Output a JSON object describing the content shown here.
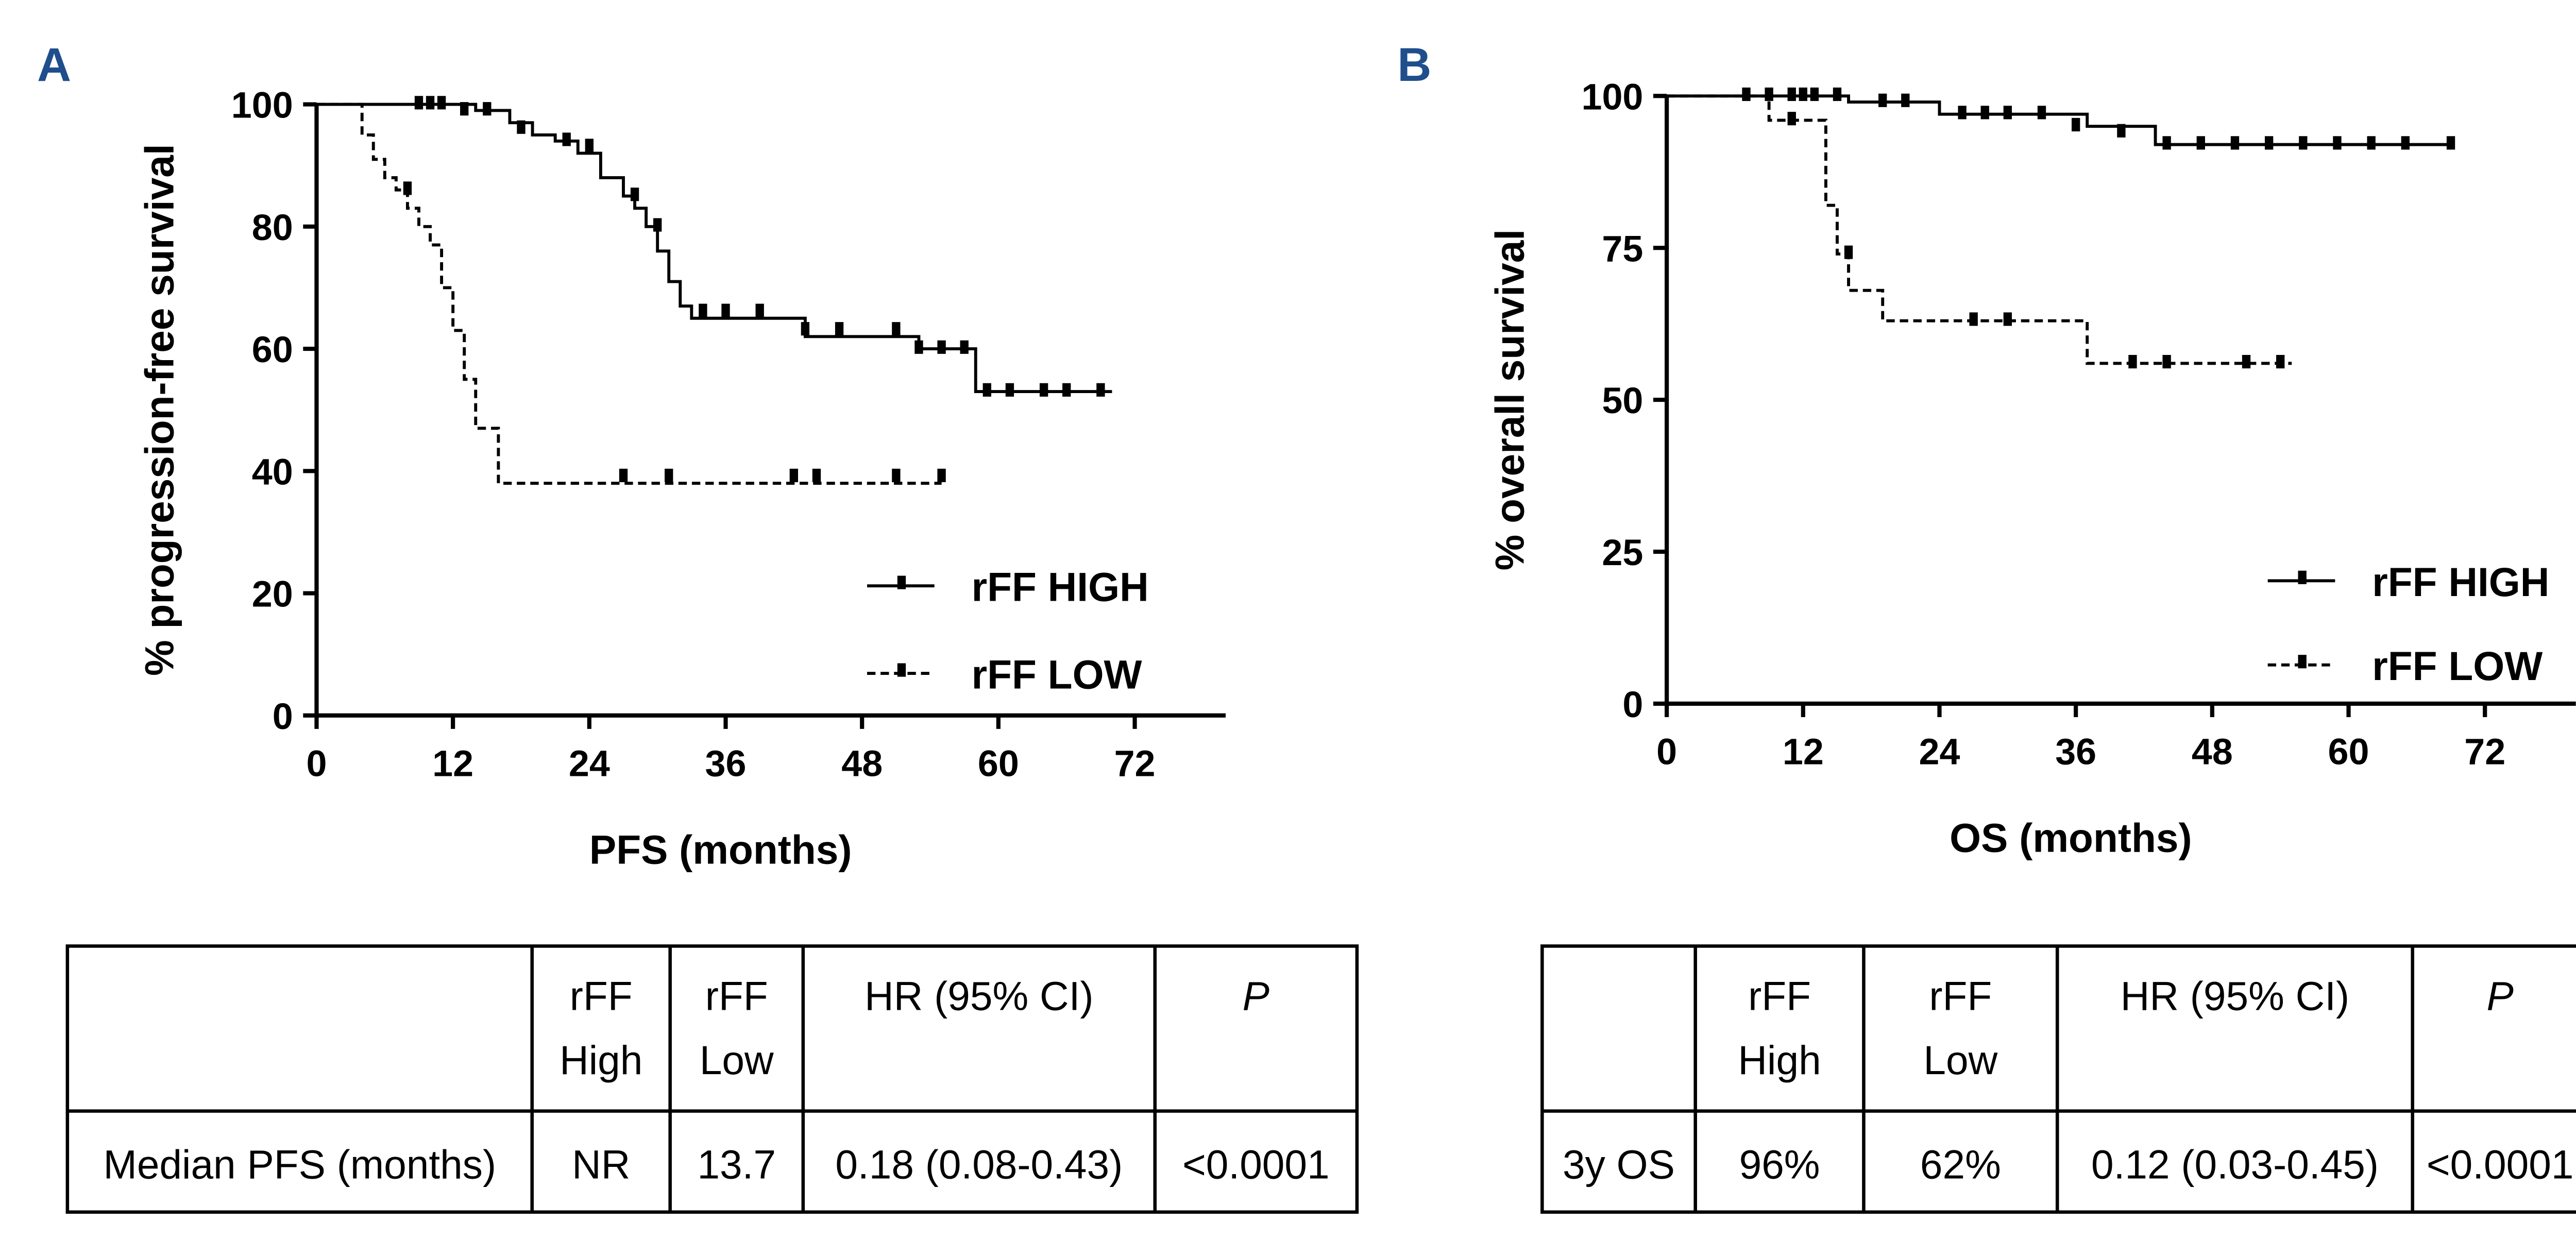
{
  "chart_data": [
    {
      "type": "step",
      "panel_label": "A",
      "x_label": "PFS (months)",
      "y_label": "% progression-free survival",
      "xlim": [
        0,
        80
      ],
      "ylim": [
        0,
        100
      ],
      "xticks": [
        0,
        12,
        24,
        36,
        48,
        60,
        72
      ],
      "yticks": [
        0,
        20,
        40,
        60,
        80,
        100
      ],
      "legend": "lower right",
      "series": [
        {
          "name": "rFF HIGH",
          "color": "#000000",
          "line_style": "solid",
          "x": [
            0,
            14,
            17,
            19,
            21,
            23,
            25,
            27,
            28,
            29,
            30,
            31,
            32,
            33,
            43,
            53,
            58,
            70
          ],
          "values": [
            100,
            99,
            97,
            95,
            94,
            92,
            88,
            85,
            83,
            80,
            76,
            71,
            67,
            65,
            62,
            60,
            53,
            53
          ],
          "censor_x": [
            9,
            10,
            11,
            13,
            15,
            18,
            22,
            24,
            28,
            30,
            34,
            36,
            39,
            43,
            46,
            51,
            53,
            55,
            57,
            59,
            61,
            64,
            66,
            69
          ],
          "censor_values": [
            100,
            100,
            100,
            99,
            99,
            96,
            94,
            93,
            85,
            80,
            66,
            66,
            66,
            63,
            63,
            63,
            60,
            60,
            60,
            53,
            53,
            53,
            53,
            53
          ]
        },
        {
          "name": "rFF LOW",
          "color": "#000000",
          "line_style": "dashed",
          "x": [
            0,
            4,
            5,
            6,
            7,
            8,
            9,
            10,
            11,
            12,
            13,
            14,
            16,
            55
          ],
          "values": [
            100,
            95,
            91,
            88,
            86,
            83,
            80,
            77,
            70,
            63,
            55,
            47,
            38,
            38
          ],
          "censor_x": [
            8,
            27,
            31,
            42,
            44,
            51,
            55
          ],
          "censor_values": [
            86,
            39,
            39,
            39,
            39,
            39,
            39
          ]
        }
      ]
    },
    {
      "type": "step",
      "panel_label": "B",
      "x_label": "OS (months)",
      "y_label": "% overall survival",
      "xlim": [
        0,
        80
      ],
      "ylim": [
        0,
        100
      ],
      "xticks": [
        0,
        12,
        24,
        36,
        48,
        60,
        72
      ],
      "yticks": [
        0,
        25,
        50,
        75,
        100
      ],
      "legend": "lower right",
      "series": [
        {
          "name": "rFF HIGH",
          "color": "#000000",
          "line_style": "solid",
          "x": [
            0,
            16,
            24,
            37,
            43,
            69
          ],
          "values": [
            100,
            99,
            97,
            95,
            92,
            92
          ],
          "censor_x": [
            7,
            9,
            11,
            12,
            13,
            15,
            19,
            21,
            26,
            28,
            30,
            33,
            36,
            40,
            44,
            47,
            50,
            53,
            56,
            59,
            62,
            65,
            69
          ],
          "censor_values": [
            100,
            100,
            100,
            100,
            100,
            100,
            99,
            99,
            97,
            97,
            97,
            97,
            95,
            94,
            92,
            92,
            92,
            92,
            92,
            92,
            92,
            92,
            92
          ]
        },
        {
          "name": "rFF LOW",
          "color": "#000000",
          "line_style": "dashed",
          "x": [
            0,
            9,
            14,
            15,
            16,
            19,
            37,
            55
          ],
          "values": [
            100,
            96,
            82,
            74,
            68,
            63,
            56,
            56
          ],
          "censor_x": [
            11,
            16,
            27,
            30,
            41,
            44,
            51,
            54
          ],
          "censor_values": [
            96,
            74,
            63,
            63,
            56,
            56,
            56,
            56
          ]
        }
      ]
    }
  ],
  "tables": [
    {
      "columns": [
        "rFF High",
        "rFF Low",
        "HR (95% CI)",
        "P"
      ],
      "rows": [
        [
          "Median PFS (months)",
          "NR",
          "13.7",
          "0.18 (0.08-0.43)",
          "<0.0001"
        ]
      ]
    },
    {
      "columns": [
        "rFF High",
        "rFF Low",
        "HR (95% CI)",
        "P"
      ],
      "rows": [
        [
          "3y OS",
          "96%",
          "62%",
          "0.12 (0.03-0.45)",
          "<0.0001"
        ]
      ]
    }
  ]
}
